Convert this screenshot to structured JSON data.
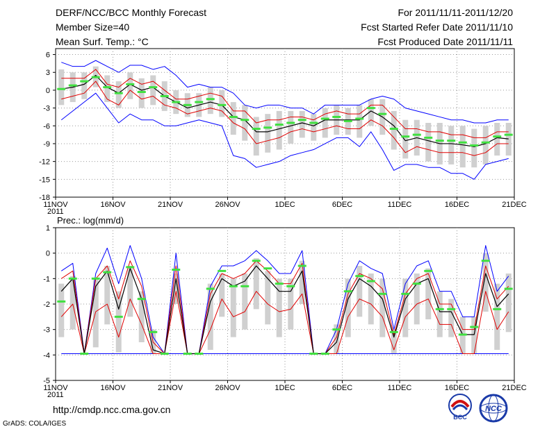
{
  "header": {
    "title": "DERF/NCC/BCC Monthly Forecast",
    "member_size": "Member Size=40",
    "variable": "Mean Surf. Temp.: °C",
    "for_range": "For 2011/11/11-2011/12/20",
    "started_date": "Fcst Started Refer Date 2011/11/10",
    "produced_date": "Fcst Produced Date 2011/11/11"
  },
  "footer": {
    "url": "http://cmdp.ncc.cma.gov.cn",
    "grads_credit": "GrADS: COLA/IGES",
    "logo_bcc_text": "BCC",
    "logo_ncc_text": "NCC"
  },
  "colors": {
    "envelope": "#0000ff",
    "spread": "#e00000",
    "mean": "#000000",
    "box": "#d0d0d0",
    "marker": "#40e040",
    "grid": "#999999"
  },
  "chart_data": [
    {
      "type": "line",
      "title": "Mean Surf. Temp.: °C",
      "x_day_range": [
        0,
        40
      ],
      "xticks": [
        "11NOV\n2011",
        "16NOV",
        "21NOV",
        "26NOV",
        "1DEC",
        "6DEC",
        "11DEC",
        "16DEC",
        "21DEC"
      ],
      "ylim": [
        -18,
        7
      ],
      "yticks": [
        -18,
        -15,
        -12,
        -9,
        -6,
        -3,
        0,
        3,
        6
      ],
      "series": [
        {
          "name": "Ensemble max",
          "values": [
            4.7,
            4.0,
            4.0,
            5.0,
            4.0,
            3.0,
            4.2,
            4.2,
            3.5,
            4.0,
            2.5,
            0.5,
            1.0,
            0.5,
            0.5,
            -0.5,
            -2.5,
            -3.0,
            -2.5,
            -2.5,
            -3.0,
            -3.0,
            -4.0,
            -2.5,
            -2.5,
            -2.5,
            -2.5,
            -1.5,
            -1.0,
            -1.5,
            -3.0,
            -3.5,
            -4.0,
            -4.5,
            -5.0,
            -5.0,
            -5.5,
            -5.5,
            -5.0,
            -5.0
          ]
        },
        {
          "name": "Mean + 1 std",
          "values": [
            2.0,
            2.0,
            2.0,
            3.5,
            1.0,
            0.5,
            2.0,
            1.0,
            1.5,
            0.0,
            -1.5,
            -1.5,
            -1.0,
            -0.5,
            -1.0,
            -3.5,
            -3.5,
            -5.5,
            -5.0,
            -5.0,
            -4.5,
            -4.5,
            -5.0,
            -4.0,
            -3.5,
            -4.0,
            -4.0,
            -2.5,
            -2.5,
            -4.5,
            -6.5,
            -6.5,
            -7.0,
            -7.0,
            -7.5,
            -7.5,
            -8.0,
            -8.0,
            -7.0,
            -7.0
          ]
        },
        {
          "name": "Ensemble mean",
          "values": [
            0.2,
            0.5,
            1.0,
            2.5,
            0.5,
            -0.5,
            1.0,
            0.0,
            0.5,
            -1.0,
            -2.0,
            -3.0,
            -2.5,
            -2.0,
            -2.5,
            -4.5,
            -5.0,
            -7.0,
            -7.0,
            -6.5,
            -6.0,
            -5.5,
            -6.0,
            -5.0,
            -5.0,
            -5.0,
            -5.0,
            -3.5,
            -4.5,
            -6.0,
            -8.5,
            -8.0,
            -8.5,
            -9.0,
            -9.0,
            -9.2,
            -9.5,
            -9.0,
            -8.0,
            -8.2
          ]
        },
        {
          "name": "Mean - 1 std",
          "values": [
            -1.5,
            -1.0,
            -0.5,
            1.5,
            -1.5,
            -2.5,
            0.0,
            -1.5,
            -1.0,
            -2.5,
            -3.0,
            -4.0,
            -3.5,
            -3.0,
            -3.5,
            -5.5,
            -6.5,
            -9.0,
            -8.5,
            -8.0,
            -7.0,
            -6.5,
            -7.0,
            -6.5,
            -6.0,
            -6.5,
            -6.5,
            -5.0,
            -6.0,
            -8.0,
            -10.5,
            -9.5,
            -10.0,
            -10.5,
            -10.5,
            -10.5,
            -11.0,
            -10.5,
            -9.0,
            -9.0
          ]
        },
        {
          "name": "Ensemble min",
          "values": [
            -5.0,
            -3.5,
            -2.0,
            -0.5,
            -3.0,
            -5.5,
            -4.0,
            -5.0,
            -5.0,
            -6.0,
            -6.0,
            -5.5,
            -5.0,
            -5.5,
            -6.0,
            -11.0,
            -11.5,
            -13.0,
            -12.5,
            -12.0,
            -11.0,
            -10.5,
            -10.0,
            -9.0,
            -8.0,
            -8.0,
            -9.5,
            -7.0,
            -10.0,
            -13.5,
            -12.5,
            -12.5,
            -13.0,
            -13.0,
            -14.0,
            -14.0,
            -15.0,
            -12.5,
            -12.0,
            -11.5
          ]
        },
        {
          "name": "Observed / control",
          "values": [
            0.2,
            0.8,
            1.5,
            2.2,
            0.5,
            -0.5,
            1.0,
            -0.3,
            0.5,
            -1.0,
            -2.0,
            -2.5,
            -2.0,
            -1.5,
            -2.5,
            -4.5,
            -5.0,
            -6.5,
            -6.3,
            -5.8,
            -5.5,
            -5.0,
            -5.5,
            -4.8,
            -4.5,
            -5.2,
            -4.8,
            -3.0,
            -4.0,
            -6.5,
            -7.8,
            -7.5,
            -8.0,
            -8.5,
            -8.5,
            -8.8,
            -9.3,
            -8.8,
            -7.8,
            -7.5
          ]
        },
        {
          "name": "Box upper",
          "values": [
            3.5,
            3.0,
            3.0,
            4.0,
            2.5,
            1.5,
            3.0,
            2.0,
            2.5,
            1.5,
            0.0,
            -0.5,
            -0.5,
            0.5,
            0.0,
            -2.0,
            -2.5,
            -4.5,
            -4.0,
            -3.5,
            -3.5,
            -3.5,
            -4.0,
            -3.0,
            -2.5,
            -3.0,
            -2.5,
            -1.5,
            -1.5,
            -3.5,
            -5.0,
            -5.0,
            -5.5,
            -5.5,
            -6.0,
            -6.0,
            -6.5,
            -6.0,
            -5.5,
            -5.5
          ]
        },
        {
          "name": "Box lower",
          "values": [
            -2.5,
            -2.0,
            -1.5,
            0.5,
            -2.0,
            -3.0,
            -1.5,
            -3.0,
            -2.5,
            -3.5,
            -4.0,
            -4.5,
            -4.5,
            -4.0,
            -4.5,
            -7.5,
            -8.5,
            -11.0,
            -10.5,
            -10.0,
            -9.0,
            -8.0,
            -8.5,
            -8.0,
            -7.5,
            -7.5,
            -8.0,
            -6.0,
            -7.5,
            -10.0,
            -11.5,
            -11.0,
            -12.0,
            -12.5,
            -12.5,
            -13.0,
            -13.0,
            -12.5,
            -11.0,
            -11.0
          ]
        }
      ]
    },
    {
      "type": "line",
      "title": "Prec.: log(mm/d)",
      "x_day_range": [
        0,
        40
      ],
      "xticks": [
        "11NOV\n2011",
        "16NOV",
        "21NOV",
        "26NOV",
        "1DEC",
        "6DEC",
        "11DEC",
        "16DEC",
        "21DEC"
      ],
      "ylim": [
        -5,
        1
      ],
      "yticks": [
        -5,
        -4,
        -3,
        -2,
        -1,
        0,
        1
      ],
      "series": [
        {
          "name": "Ensemble max",
          "values": [
            -0.7,
            -0.4,
            -3.95,
            -0.8,
            0.2,
            -1.2,
            0.3,
            -1.0,
            -3.3,
            -3.95,
            0.0,
            -3.95,
            -3.95,
            -1.3,
            -0.5,
            -0.5,
            -0.3,
            0.1,
            -0.3,
            -0.8,
            -0.8,
            0.1,
            -3.95,
            -3.95,
            -3.0,
            -1.2,
            -0.3,
            -0.6,
            -0.8,
            -3.0,
            -1.2,
            -0.5,
            -0.3,
            -1.5,
            -1.5,
            -2.5,
            -2.5,
            0.3,
            -1.5,
            -0.9
          ]
        },
        {
          "name": "Mean + 1 std",
          "values": [
            -1.0,
            -0.7,
            -3.95,
            -1.0,
            -0.5,
            -1.8,
            -0.3,
            -1.3,
            -3.5,
            -3.95,
            -0.5,
            -3.95,
            -3.95,
            -1.6,
            -0.8,
            -1.0,
            -0.8,
            -0.3,
            -0.7,
            -1.2,
            -1.2,
            -0.4,
            -3.95,
            -3.95,
            -3.3,
            -1.6,
            -0.8,
            -1.0,
            -1.4,
            -3.2,
            -1.6,
            -1.0,
            -0.8,
            -2.0,
            -2.0,
            -3.0,
            -3.0,
            -0.5,
            -1.8,
            -1.3
          ]
        },
        {
          "name": "Ensemble mean",
          "values": [
            -1.5,
            -1.0,
            -3.95,
            -1.3,
            -0.7,
            -2.2,
            -0.6,
            -1.8,
            -3.8,
            -3.95,
            -1.0,
            -3.95,
            -3.95,
            -1.9,
            -1.0,
            -1.3,
            -1.1,
            -0.5,
            -1.0,
            -1.5,
            -1.5,
            -0.7,
            -3.95,
            -3.95,
            -3.5,
            -1.8,
            -1.0,
            -1.3,
            -1.8,
            -3.3,
            -1.8,
            -1.2,
            -1.0,
            -2.3,
            -2.3,
            -3.2,
            -3.2,
            -0.8,
            -2.1,
            -1.6
          ]
        },
        {
          "name": "Mean - 1 std",
          "values": [
            -2.5,
            -2.0,
            -3.95,
            -2.3,
            -2.0,
            -3.3,
            -1.8,
            -2.8,
            -3.95,
            -3.95,
            -1.5,
            -3.95,
            -3.95,
            -3.0,
            -1.8,
            -2.5,
            -2.3,
            -1.5,
            -2.0,
            -2.3,
            -2.2,
            -1.6,
            -3.95,
            -3.95,
            -3.95,
            -2.5,
            -1.8,
            -2.0,
            -2.5,
            -3.8,
            -2.5,
            -2.0,
            -1.8,
            -2.8,
            -2.8,
            -3.95,
            -3.95,
            -1.5,
            -3.0,
            -2.3
          ]
        },
        {
          "name": "Ensemble min",
          "values": [
            -3.95,
            -3.95,
            -3.95,
            -3.95,
            -3.95,
            -3.95,
            -3.95,
            -3.95,
            -3.95,
            -3.95,
            -3.95,
            -3.95,
            -3.95,
            -3.95,
            -3.95,
            -3.95,
            -3.95,
            -3.95,
            -3.95,
            -3.95,
            -3.95,
            -3.95,
            -3.95,
            -3.95,
            -3.95,
            -3.95,
            -3.95,
            -3.95,
            -3.95,
            -3.95,
            -3.95,
            -3.95,
            -3.95,
            -3.95,
            -3.95,
            -3.95,
            -3.95,
            -3.95,
            -3.95,
            -3.95
          ]
        },
        {
          "name": "Observed / control",
          "values": [
            -1.9,
            -1.0,
            -3.95,
            -1.0,
            -0.75,
            -2.5,
            -0.55,
            -1.8,
            -3.1,
            -3.95,
            -0.65,
            -3.95,
            -3.95,
            -1.4,
            -0.7,
            -1.3,
            -1.3,
            -0.3,
            -0.6,
            -1.2,
            -1.3,
            -0.5,
            -3.95,
            -3.95,
            -3.0,
            -1.5,
            -0.9,
            -1.1,
            -1.6,
            -3.1,
            -1.6,
            -1.2,
            -0.7,
            -2.2,
            -2.2,
            -3.2,
            -2.9,
            -0.3,
            -2.2,
            -1.4
          ]
        },
        {
          "name": "Box upper",
          "values": [
            -1.2,
            -0.9,
            -3.95,
            -1.0,
            -0.5,
            -1.5,
            -0.5,
            -1.5,
            -3.0,
            -3.95,
            -0.8,
            -3.95,
            -3.95,
            -1.2,
            -0.8,
            -1.0,
            -0.8,
            -0.2,
            -0.7,
            -1.0,
            -1.0,
            -0.3,
            -3.95,
            -3.95,
            -2.8,
            -1.0,
            -0.5,
            -0.8,
            -1.0,
            -3.0,
            -1.0,
            -0.8,
            -0.6,
            -1.5,
            -1.8,
            -2.5,
            -2.5,
            0.0,
            -1.2,
            -0.8
          ]
        },
        {
          "name": "Box lower",
          "values": [
            -3.3,
            -3.0,
            -3.95,
            -3.7,
            -2.8,
            -3.9,
            -2.5,
            -3.5,
            -3.95,
            -3.95,
            -2.0,
            -3.95,
            -3.95,
            -3.8,
            -2.5,
            -3.3,
            -3.0,
            -2.2,
            -2.8,
            -3.3,
            -3.0,
            -2.0,
            -3.95,
            -3.95,
            -3.95,
            -3.3,
            -2.5,
            -2.8,
            -3.3,
            -3.95,
            -3.3,
            -2.8,
            -2.6,
            -3.3,
            -3.3,
            -3.95,
            -3.95,
            -2.3,
            -3.8,
            -3.1
          ]
        }
      ]
    }
  ]
}
